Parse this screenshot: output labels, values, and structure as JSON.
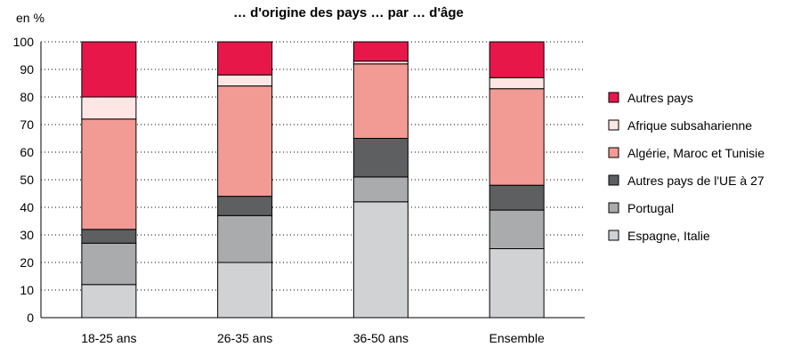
{
  "chart_data": {
    "type": "bar",
    "stacked": true,
    "title": "… d'origine des pays … par … d'âge",
    "ylabel": "en %",
    "ylim": [
      0,
      100
    ],
    "yticks": [
      0,
      10,
      20,
      30,
      40,
      50,
      60,
      70,
      80,
      90,
      100
    ],
    "grid": "horizontal dotted",
    "legend_position": "right",
    "categories": [
      "18-25 ans",
      "26-35 ans",
      "36-50 ans",
      "Ensemble"
    ],
    "series": [
      {
        "name": "Espagne, Italie",
        "color": "#d0d2d4",
        "values": [
          12,
          20,
          42,
          25
        ]
      },
      {
        "name": "Portugal",
        "color": "#a9abad",
        "values": [
          15,
          17,
          9,
          14
        ]
      },
      {
        "name": "Autres pays de l'UE à 27",
        "color": "#5d5f61",
        "values": [
          5,
          7,
          14,
          9
        ]
      },
      {
        "name": "Algérie, Maroc et Tunisie",
        "color": "#f19b94",
        "values": [
          40,
          40,
          27,
          35
        ]
      },
      {
        "name": "Afrique subsaharienne",
        "color": "#fde6e3",
        "values": [
          8,
          4,
          1,
          4
        ]
      },
      {
        "name": "Autres pays",
        "color": "#e8174a",
        "values": [
          20,
          12,
          7,
          13
        ]
      }
    ]
  }
}
